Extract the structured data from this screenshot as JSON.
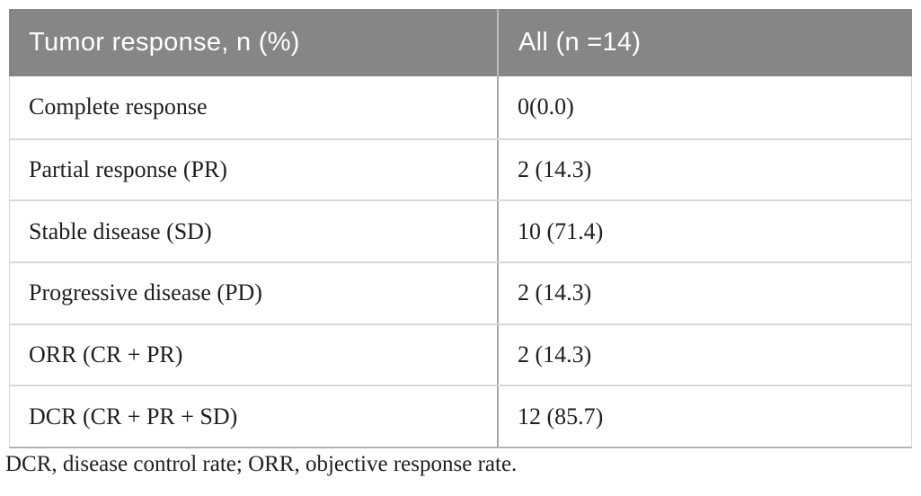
{
  "table": {
    "header": {
      "col1": "Tumor response, n (%)",
      "col2": "All (n =14)"
    },
    "rows": [
      {
        "label": "Complete response",
        "value": "0(0.0)"
      },
      {
        "label": "Partial response (PR)",
        "value": "2 (14.3)"
      },
      {
        "label": "Stable disease (SD)",
        "value": "10 (71.4)"
      },
      {
        "label": "Progressive disease (PD)",
        "value": "2 (14.3)"
      },
      {
        "label": "ORR (CR + PR)",
        "value": "2 (14.3)"
      },
      {
        "label": "DCR (CR + PR + SD)",
        "value": "12 (85.7)"
      }
    ],
    "footnote": "DCR, disease control rate; ORR, objective response rate."
  },
  "colors": {
    "header_bg": "#868686",
    "header_text": "#ffffff",
    "body_text": "#1f1f1f",
    "row_separator": "#d8d8d8",
    "column_divider": "#a6a6a6",
    "bottom_border": "#b3b3b3"
  }
}
